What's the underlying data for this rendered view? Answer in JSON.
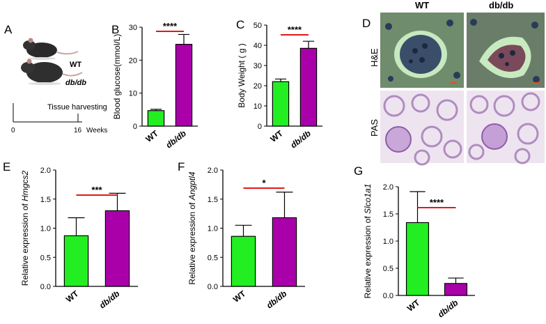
{
  "panel_letters": [
    "A",
    "B",
    "C",
    "D",
    "E",
    "F",
    "G"
  ],
  "panel_a": {
    "mouse_labels": [
      "WT",
      "db/db"
    ],
    "timeline_event": "Tissue harvesting",
    "timeline_ticks": [
      "0",
      "16"
    ],
    "timeline_unit": "Weeks"
  },
  "panel_d": {
    "col_labels": [
      "WT",
      "db/db"
    ],
    "row_labels": [
      "H&E",
      "PAS"
    ]
  },
  "colors": {
    "wt": "#22ee22",
    "dbdb": "#aa00aa",
    "sig": "#e01818"
  },
  "chart_data": [
    {
      "id": "B",
      "type": "bar",
      "categories": [
        "WT",
        "db/db"
      ],
      "values": [
        4.7,
        24.8
      ],
      "errors": [
        0.4,
        3.0
      ],
      "ylabel": "Blood glucose(mmol/L)",
      "ylim": [
        0,
        30
      ],
      "yticks": [
        "0",
        "10",
        "20",
        "30"
      ],
      "significance": "****"
    },
    {
      "id": "C",
      "type": "bar",
      "categories": [
        "WT",
        "db/db"
      ],
      "values": [
        22.0,
        38.5
      ],
      "errors": [
        1.3,
        3.5
      ],
      "ylabel": "Body Weight ( g )",
      "ylim": [
        0,
        50
      ],
      "yticks": [
        "0",
        "10",
        "20",
        "30",
        "40",
        "50"
      ],
      "significance": "****"
    },
    {
      "id": "E",
      "type": "bar",
      "categories": [
        "WT",
        "db/db"
      ],
      "values": [
        0.87,
        1.3
      ],
      "errors": [
        0.31,
        0.3
      ],
      "ylabel_prefix": "Relative expression of ",
      "ylabel_gene": "Hmgcs2",
      "ylim": [
        0,
        2.0
      ],
      "yticks": [
        "0.0",
        "0.5",
        "1.0",
        "1.5",
        "2.0"
      ],
      "significance": "***"
    },
    {
      "id": "F",
      "type": "bar",
      "categories": [
        "WT",
        "db/db"
      ],
      "values": [
        0.86,
        1.18
      ],
      "errors": [
        0.19,
        0.44
      ],
      "ylabel_prefix": "Relative expression of ",
      "ylabel_gene": "Angptl4",
      "ylim": [
        0,
        2.0
      ],
      "yticks": [
        "0.0",
        "0.5",
        "1.0",
        "1.5",
        "2.0"
      ],
      "significance": "*"
    },
    {
      "id": "G",
      "type": "bar",
      "categories": [
        "WT",
        "db/db"
      ],
      "values": [
        1.34,
        0.22
      ],
      "errors": [
        0.57,
        0.1
      ],
      "ylabel_prefix": "Relative expression of ",
      "ylabel_gene": "Slco1a1",
      "ylim": [
        0,
        2.0
      ],
      "yticks": [
        "0.0",
        "0.5",
        "1.0",
        "1.5",
        "2.0"
      ],
      "significance": "****"
    }
  ]
}
